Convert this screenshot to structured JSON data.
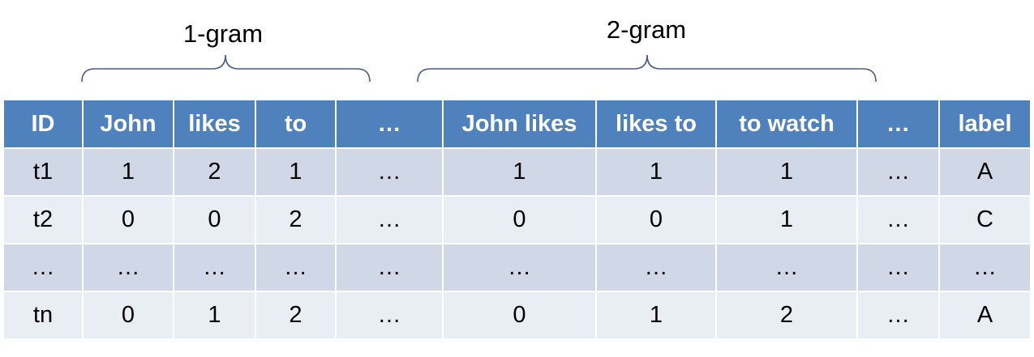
{
  "groups": {
    "unigram_label": "1-gram",
    "bigram_label": "2-gram"
  },
  "table": {
    "headers": [
      "ID",
      "John",
      "likes",
      "to",
      "…",
      "John likes",
      "likes to",
      "to watch",
      "…",
      "label"
    ],
    "rows": [
      [
        "t1",
        "1",
        "2",
        "1",
        "…",
        "1",
        "1",
        "1",
        "…",
        "A"
      ],
      [
        "t2",
        "0",
        "0",
        "2",
        "…",
        "0",
        "0",
        "1",
        "…",
        "C"
      ],
      [
        "…",
        "…",
        "…",
        "…",
        "…",
        "…",
        "…",
        "…",
        "…",
        "…"
      ],
      [
        "tn",
        "0",
        "1",
        "2",
        "…",
        "0",
        "1",
        "2",
        "…",
        "A"
      ]
    ]
  },
  "colors": {
    "header_bg": "#4f81bd",
    "row_odd_bg": "#d0d8e8",
    "row_even_bg": "#e9edf4",
    "brace": "#4a5a80"
  }
}
